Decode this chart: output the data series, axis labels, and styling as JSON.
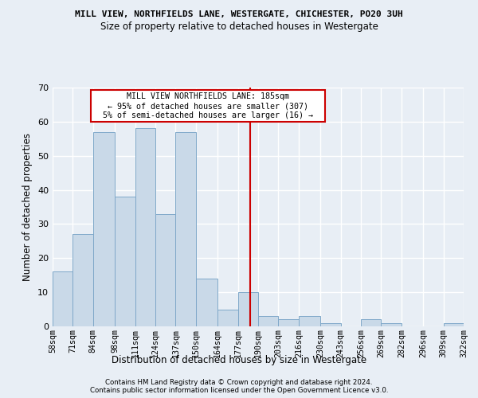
{
  "title": "MILL VIEW, NORTHFIELDS LANE, WESTERGATE, CHICHESTER, PO20 3UH",
  "subtitle": "Size of property relative to detached houses in Westergate",
  "xlabel": "Distribution of detached houses by size in Westergate",
  "ylabel": "Number of detached properties",
  "bar_color": "#c9d9e8",
  "bar_edge_color": "#7fa8c9",
  "background_color": "#e8eef5",
  "grid_color": "#ffffff",
  "vline_color": "#cc0000",
  "vline_x": 185,
  "annotation_text": "  MILL VIEW NORTHFIELDS LANE: 185sqm  \n  ← 95% of detached houses are smaller (307)  \n  5% of semi-detached houses are larger (16) →  ",
  "annotation_box_color": "#ffffff",
  "annotation_box_edge_color": "#cc0000",
  "bin_edges": [
    58,
    71,
    84,
    98,
    111,
    124,
    137,
    150,
    164,
    177,
    190,
    203,
    216,
    230,
    243,
    256,
    269,
    282,
    296,
    309,
    322
  ],
  "bin_labels": [
    "58sqm",
    "71sqm",
    "84sqm",
    "98sqm",
    "111sqm",
    "124sqm",
    "137sqm",
    "150sqm",
    "164sqm",
    "177sqm",
    "190sqm",
    "203sqm",
    "216sqm",
    "230sqm",
    "243sqm",
    "256sqm",
    "269sqm",
    "282sqm",
    "296sqm",
    "309sqm",
    "322sqm"
  ],
  "bar_heights": [
    16,
    27,
    57,
    38,
    58,
    33,
    57,
    14,
    5,
    10,
    3,
    2,
    3,
    1,
    0,
    2,
    1,
    0,
    0,
    1
  ],
  "ylim": [
    0,
    70
  ],
  "yticks": [
    0,
    10,
    20,
    30,
    40,
    50,
    60,
    70
  ],
  "footer1": "Contains HM Land Registry data © Crown copyright and database right 2024.",
  "footer2": "Contains public sector information licensed under the Open Government Licence v3.0."
}
